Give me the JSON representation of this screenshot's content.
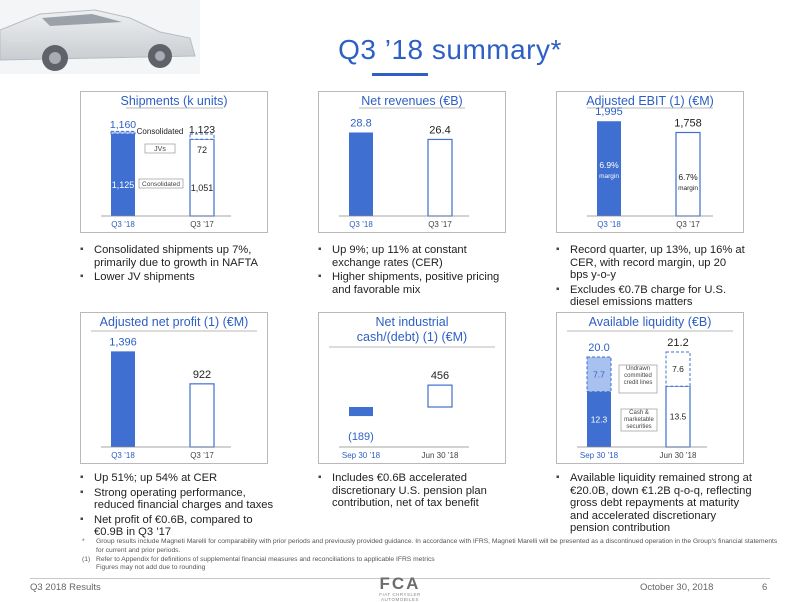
{
  "slide": {
    "title": "Q3 ’18 summary*",
    "footer_left": "Q3 2018 Results",
    "footer_date": "October 30, 2018",
    "page_number": "6",
    "logo_text": "FCA",
    "logo_subtitle": "FIAT CHRYSLER AUTOMOBILES",
    "accent_color": "#2d5fc4"
  },
  "footnotes": [
    {
      "marker": "*",
      "text": "Group results include Magneti Marelli for comparability with prior periods and previously provided guidance. In accordance with IFRS, Magneti Marelli will be presented as a discontinued operation in the Group’s financial statements for current and prior periods."
    },
    {
      "marker": "(1)",
      "text": "Refer to Appendix for definitions of supplemental financial measures and reconciliations to applicable IFRS metrics"
    },
    {
      "marker": "",
      "text": "Figures may not add due to rounding"
    }
  ],
  "panels": [
    {
      "title": "Shipments (k units)",
      "bullets": [
        "Consolidated shipments up 7%, primarily due to growth in NAFTA",
        "Lower JV shipments"
      ]
    },
    {
      "title": "Net revenues (€B)",
      "bullets": [
        "Up 9%; up 11% at constant exchange rates (CER)",
        "Higher shipments, positive pricing and favorable mix"
      ]
    },
    {
      "title": "Adjusted EBIT (1) (€M)",
      "bullets": [
        "Record quarter, up 13%, up 16% at CER, with record margin, up 20 bps y-o-y",
        "Excludes €0.7B charge for U.S. diesel emissions matters"
      ]
    },
    {
      "title": "Adjusted net profit (1) (€M)",
      "bullets": [
        "Up 51%; up 54% at CER",
        "Strong operating performance, reduced financial charges and taxes",
        "Net profit of €0.6B, compared to €0.9B in Q3 ’17"
      ]
    },
    {
      "title_line1": "Net industrial",
      "title_line2": "cash/(debt) (1) (€M)",
      "bullets": [
        "Includes €0.6B accelerated discretionary U.S. pension plan contribution, net of tax benefit"
      ]
    },
    {
      "title": "Available liquidity (€B)",
      "bullets": [
        "Available liquidity remained strong at €20.0B, down €1.2B q-o-q, reflecting gross debt repayments at maturity and accelerated discretionary pension contribution"
      ]
    }
  ],
  "chart_data": [
    {
      "type": "bar",
      "title": "Shipments (k units)",
      "categories": [
        "Q3 ’18",
        "Q3 ’17"
      ],
      "series": [
        {
          "name": "Consolidated",
          "values": [
            1125,
            1051
          ]
        },
        {
          "name": "JVs",
          "values": [
            35,
            72
          ]
        }
      ],
      "totals": [
        "1,160",
        "1,123"
      ],
      "value_labels": [
        [
          "1,125",
          "1,051"
        ],
        [
          "",
          "72"
        ]
      ]
    },
    {
      "type": "bar",
      "title": "Net revenues (€B)",
      "categories": [
        "Q3 ’18",
        "Q3 ’17"
      ],
      "values": [
        28.8,
        26.4
      ],
      "value_labels": [
        "28.8",
        "26.4"
      ]
    },
    {
      "type": "bar",
      "title": "Adjusted EBIT (1) (€M)",
      "categories": [
        "Q3 ’18",
        "Q3 ’17"
      ],
      "values": [
        1995,
        1758
      ],
      "value_labels": [
        "1,995",
        "1,758"
      ],
      "margins": [
        "6.9%",
        "6.7%"
      ],
      "margin_word": "margin"
    },
    {
      "type": "bar",
      "title": "Adjusted net profit (1) (€M)",
      "categories": [
        "Q3 ’18",
        "Q3 ’17"
      ],
      "values": [
        1396,
        922
      ],
      "value_labels": [
        "1,396",
        "922"
      ]
    },
    {
      "type": "bar",
      "title": "Net industrial cash/(debt) (1) (€M)",
      "categories": [
        "Sep 30 ’18",
        "Jun 30 ’18"
      ],
      "values": [
        -189,
        456
      ],
      "value_labels": [
        "(189)",
        "456"
      ]
    },
    {
      "type": "bar",
      "title": "Available liquidity (€B)",
      "categories": [
        "Sep 30 ’18",
        "Jun 30 ’18"
      ],
      "series": [
        {
          "name": "Cash & marketable securities",
          "values": [
            12.3,
            13.5
          ]
        },
        {
          "name": "Undrawn committed credit lines",
          "values": [
            7.7,
            7.6
          ]
        }
      ],
      "totals": [
        "20.0",
        "21.2"
      ],
      "value_labels": [
        [
          "12.3",
          "13.5"
        ],
        [
          "7.7",
          "7.6"
        ]
      ]
    }
  ]
}
